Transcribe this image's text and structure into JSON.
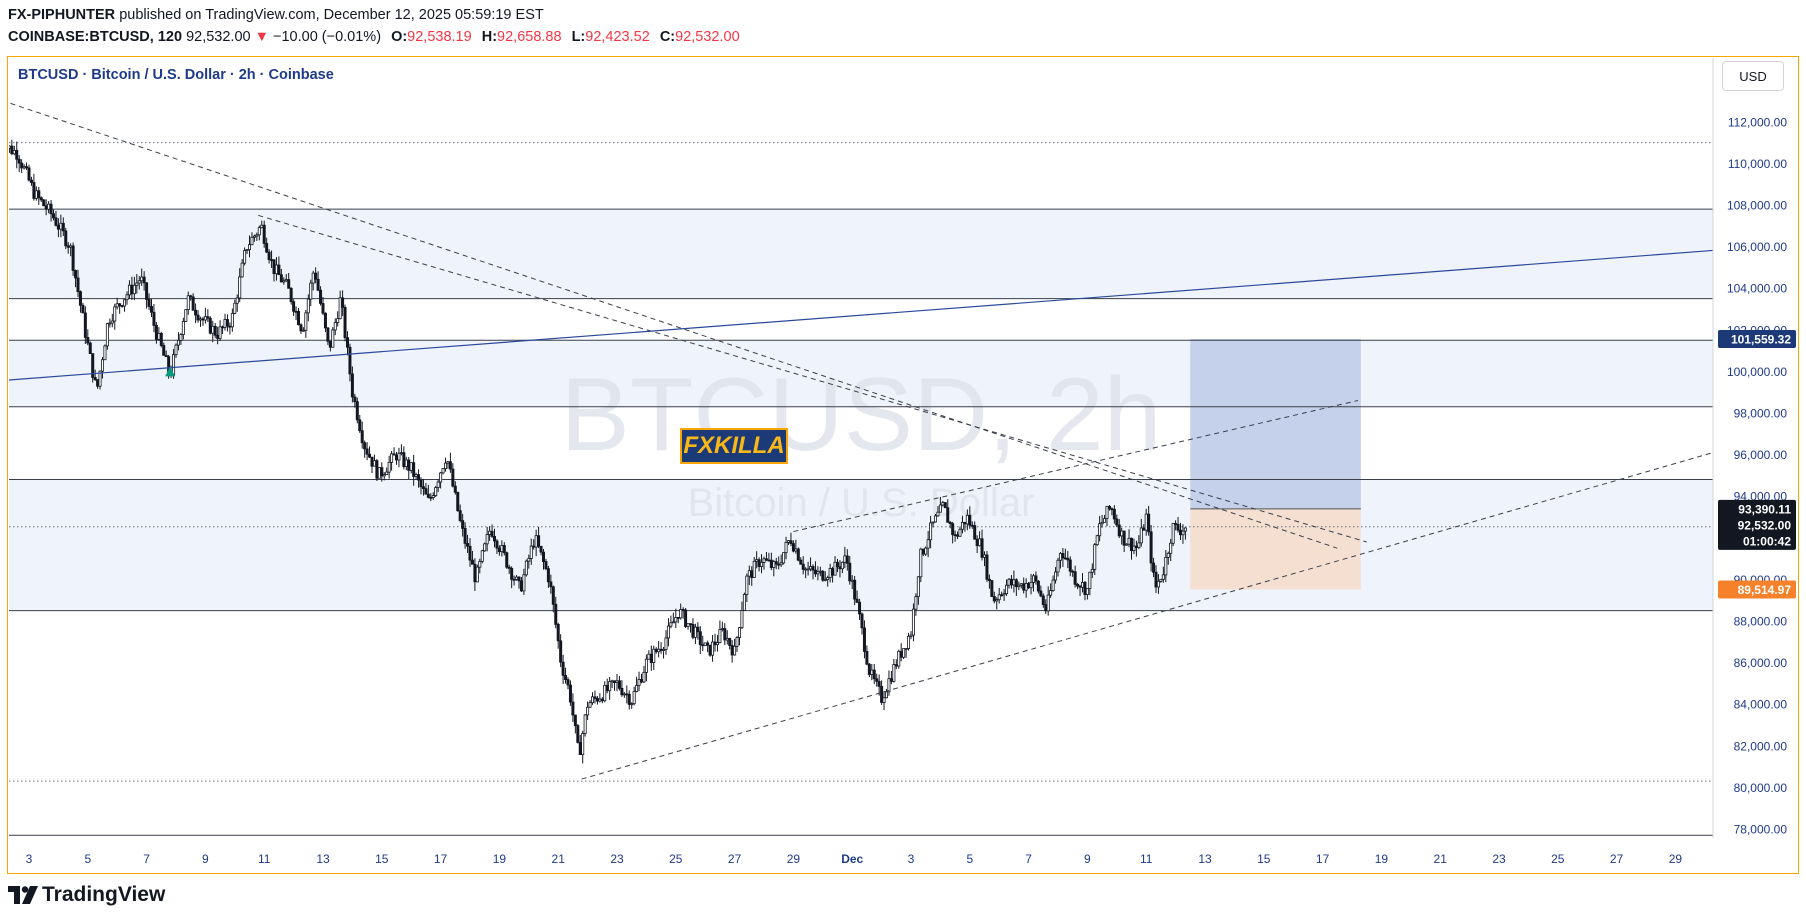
{
  "header": {
    "author": "FX-PIPHUNTER",
    "published_text": "published on TradingView.com, December 12, 2025 05:59:19 EST",
    "symbol_line": "COINBASE:BTCUSD, 120",
    "last_price": "92,532.00",
    "change_arrow": "▼",
    "change": "−10.00 (−0.01%)",
    "open_label": "O:",
    "open": "92,538.19",
    "high_label": "H:",
    "high": "92,658.88",
    "low_label": "L:",
    "low": "92,423.52",
    "close_label": "C:",
    "close": "92,532.00"
  },
  "legend": {
    "title": "BTCUSD · Bitcoin / U.S. Dollar · 2h · Coinbase"
  },
  "watermark": {
    "line1": "BTCUSD, 2h",
    "line2": "Bitcoin / U.S. Dollar"
  },
  "currency_button": "USD",
  "badge": {
    "text": "FXKILLA"
  },
  "footer": {
    "brand": "TradingView"
  },
  "colors": {
    "frame": "#f7a600",
    "axis_text": "#1e3a8a",
    "zone_fill": "#eef3fc",
    "target_fill": "#c5d0ea",
    "stop_fill": "#f4dfd0",
    "trendline_blue": "#2a4a9a",
    "target_badge": "#1c3a78",
    "stop_badge": "#f5822a",
    "current_badge": "#131722"
  },
  "chart_data": {
    "type": "candlestick",
    "title": "BTCUSD · Bitcoin / U.S. Dollar · 2h · Coinbase",
    "timeframe": "2h",
    "currency": "USD",
    "ylim": [
      77000,
      113500
    ],
    "y_ticks": [
      78000,
      80000,
      82000,
      84000,
      86000,
      88000,
      90000,
      92000,
      94000,
      96000,
      98000,
      100000,
      102000,
      104000,
      106000,
      108000,
      110000,
      112000
    ],
    "y_tick_labels": [
      "78,000.00",
      "80,000.00",
      "82,000.00",
      "84,000.00",
      "86,000.00",
      "88,000.00",
      "90,000.00",
      "92,000.00",
      "94,000.00",
      "96,000.00",
      "98,000.00",
      "100,000.00",
      "102,000.00",
      "104,000.00",
      "106,000.00",
      "108,000.00",
      "110,000.00",
      "112,000.00"
    ],
    "x_ticks": [
      {
        "d": 3,
        "label": "3"
      },
      {
        "d": 5,
        "label": "5"
      },
      {
        "d": 7,
        "label": "7"
      },
      {
        "d": 9,
        "label": "9"
      },
      {
        "d": 11,
        "label": "11"
      },
      {
        "d": 13,
        "label": "13"
      },
      {
        "d": 15,
        "label": "15"
      },
      {
        "d": 17,
        "label": "17"
      },
      {
        "d": 19,
        "label": "19"
      },
      {
        "d": 21,
        "label": "21"
      },
      {
        "d": 23,
        "label": "23"
      },
      {
        "d": 25,
        "label": "25"
      },
      {
        "d": 27,
        "label": "27"
      },
      {
        "d": 29,
        "label": "29"
      },
      {
        "d": 31,
        "label": "Dec"
      },
      {
        "d": 33,
        "label": "3"
      },
      {
        "d": 35,
        "label": "5"
      },
      {
        "d": 37,
        "label": "7"
      },
      {
        "d": 39,
        "label": "9"
      },
      {
        "d": 41,
        "label": "11"
      },
      {
        "d": 43,
        "label": "13"
      },
      {
        "d": 45,
        "label": "15"
      },
      {
        "d": 47,
        "label": "17"
      },
      {
        "d": 49,
        "label": "19"
      },
      {
        "d": 51,
        "label": "21"
      },
      {
        "d": 53,
        "label": "23"
      },
      {
        "d": 55,
        "label": "25"
      },
      {
        "d": 57,
        "label": "27"
      },
      {
        "d": 59,
        "label": "29"
      }
    ],
    "price_path": [
      [
        2.0,
        111000
      ],
      [
        2.6,
        110500
      ],
      [
        3.2,
        108500
      ],
      [
        3.8,
        107500
      ],
      [
        4.4,
        106000
      ],
      [
        4.9,
        102000
      ],
      [
        5.3,
        99000
      ],
      [
        5.7,
        102500
      ],
      [
        6.2,
        103500
      ],
      [
        6.8,
        104500
      ],
      [
        7.3,
        102000
      ],
      [
        7.8,
        99800
      ],
      [
        8.4,
        103500
      ],
      [
        8.9,
        102500
      ],
      [
        9.4,
        101800
      ],
      [
        9.9,
        102500
      ],
      [
        10.4,
        106000
      ],
      [
        10.9,
        107000
      ],
      [
        11.3,
        105000
      ],
      [
        11.8,
        104000
      ],
      [
        12.3,
        102000
      ],
      [
        12.7,
        105000
      ],
      [
        13.2,
        101000
      ],
      [
        13.6,
        103500
      ],
      [
        14.0,
        99000
      ],
      [
        14.4,
        96500
      ],
      [
        14.9,
        95000
      ],
      [
        15.5,
        96000
      ],
      [
        16.0,
        95300
      ],
      [
        16.6,
        93700
      ],
      [
        17.2,
        96000
      ],
      [
        17.7,
        92500
      ],
      [
        18.2,
        90000
      ],
      [
        18.7,
        92500
      ],
      [
        19.2,
        91000
      ],
      [
        19.7,
        89500
      ],
      [
        20.2,
        92000
      ],
      [
        20.7,
        90000
      ],
      [
        21.1,
        86000
      ],
      [
        21.4,
        84500
      ],
      [
        21.7,
        81500
      ],
      [
        22.0,
        84000
      ],
      [
        22.5,
        84500
      ],
      [
        23.0,
        85000
      ],
      [
        23.5,
        84200
      ],
      [
        24.0,
        86000
      ],
      [
        24.6,
        87000
      ],
      [
        25.1,
        88500
      ],
      [
        25.6,
        87500
      ],
      [
        26.1,
        86500
      ],
      [
        26.6,
        87500
      ],
      [
        27.0,
        86500
      ],
      [
        27.4,
        90000
      ],
      [
        27.9,
        91000
      ],
      [
        28.4,
        90500
      ],
      [
        28.9,
        92000
      ],
      [
        29.4,
        90500
      ],
      [
        29.9,
        90200
      ],
      [
        30.4,
        90500
      ],
      [
        30.8,
        91000
      ],
      [
        31.2,
        88500
      ],
      [
        31.6,
        85500
      ],
      [
        32.0,
        84300
      ],
      [
        32.5,
        86000
      ],
      [
        33.0,
        87500
      ],
      [
        33.3,
        91000
      ],
      [
        33.7,
        92500
      ],
      [
        34.1,
        93500
      ],
      [
        34.5,
        92000
      ],
      [
        34.9,
        93000
      ],
      [
        35.4,
        91500
      ],
      [
        35.8,
        89000
      ],
      [
        36.3,
        89800
      ],
      [
        36.8,
        89700
      ],
      [
        37.2,
        90000
      ],
      [
        37.6,
        88500
      ],
      [
        38.1,
        91500
      ],
      [
        38.6,
        90000
      ],
      [
        39.0,
        89500
      ],
      [
        39.4,
        92500
      ],
      [
        39.8,
        93500
      ],
      [
        40.2,
        92000
      ],
      [
        40.7,
        91500
      ],
      [
        41.0,
        93000
      ],
      [
        41.3,
        89500
      ],
      [
        41.6,
        90500
      ],
      [
        41.9,
        92500
      ],
      [
        42.2,
        92400
      ],
      [
        42.4,
        92532
      ]
    ],
    "horizontal_levels": [
      111000,
      107800,
      103500,
      101500,
      98300,
      94800,
      92532,
      88500,
      80300,
      77700
    ],
    "zones": [
      [
        103500,
        107800
      ],
      [
        98300,
        101500
      ],
      [
        88500,
        94800
      ]
    ],
    "blue_trendline": [
      [
        1.5,
        99500
      ],
      [
        62,
        106000
      ]
    ],
    "dashed_lines": [
      [
        [
          1.5,
          113300
        ],
        [
          47.5,
          91500
        ]
      ],
      [
        [
          10.8,
          107500
        ],
        [
          48.5,
          91800
        ]
      ],
      [
        [
          21.8,
          80400
        ],
        [
          62,
          96800
        ]
      ],
      [
        [
          29.0,
          92300
        ],
        [
          48.2,
          98600
        ]
      ]
    ],
    "position_tool": {
      "x_start": 42.5,
      "x_end": 48.3,
      "entry": 93390.11,
      "target": 101559.32,
      "stop": 89514.97
    },
    "markers": [
      {
        "x": 7.8,
        "y": 100000,
        "type": "up-arrow"
      }
    ],
    "price_labels": {
      "target": "101,559.32",
      "entry": "93,390.11",
      "current": "92,532.00",
      "countdown": "01:00:42",
      "stop": "89,514.97"
    }
  }
}
